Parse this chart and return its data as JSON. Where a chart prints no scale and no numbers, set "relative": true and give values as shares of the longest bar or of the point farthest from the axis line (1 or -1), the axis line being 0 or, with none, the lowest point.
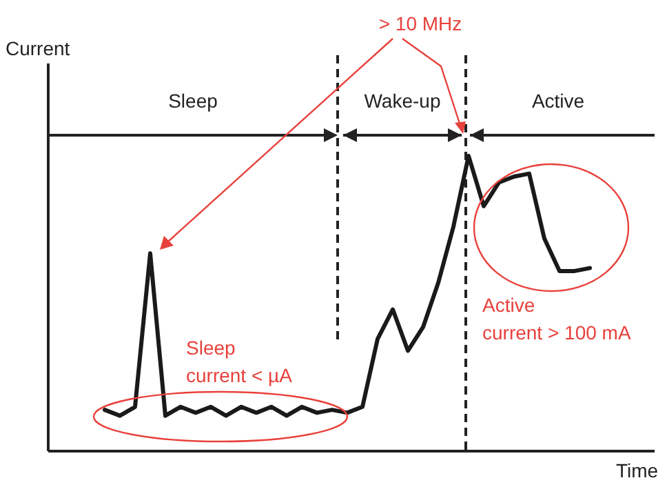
{
  "chart_data": {
    "type": "line",
    "relative": true,
    "xlabel": "Time",
    "marker": "none",
    "line_style": "solid",
    "categories": [
      null,
      null,
      null,
      null,
      null,
      null,
      null,
      null,
      null,
      null,
      null,
      null,
      null,
      null,
      null,
      null,
      null,
      null,
      null,
      null,
      null,
      null,
      null,
      null,
      null,
      null,
      null,
      null,
      null,
      null,
      null,
      null,
      null
    ],
    "series": [
      {
        "color": "#1a1a1a",
        "values": [
          0.14,
          0.12,
          0.15,
          0.67,
          0.12,
          0.15,
          0.13,
          0.15,
          0.12,
          0.15,
          0.13,
          0.15,
          0.12,
          0.15,
          0.13,
          0.14,
          0.13,
          0.15,
          0.38,
          0.48,
          0.34,
          0.42,
          0.57,
          0.76,
          1,
          0.83,
          0.91,
          0.93,
          0.94,
          0.72,
          0.61,
          0.61,
          0.62
        ]
      }
    ],
    "annotations": [
      "> 10 MHz",
      "Sleep",
      "Wake-up",
      "Active",
      "Sleep current < µA",
      "Active current > 100 mA",
      "Current"
    ]
  }
}
